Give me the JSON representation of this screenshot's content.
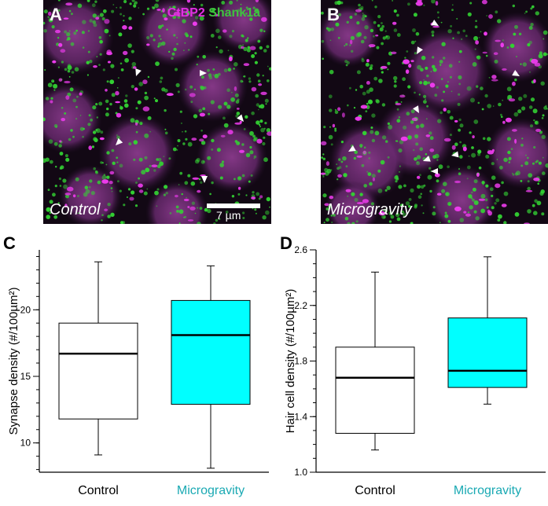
{
  "panels": {
    "A": {
      "letter": "A",
      "condition": "Control",
      "stain1": "CtBP2",
      "stain2": "Shank1a",
      "scale_label": "7 µm"
    },
    "B": {
      "letter": "B",
      "condition": "Microgravity"
    },
    "C": {
      "letter": "C"
    },
    "D": {
      "letter": "D"
    }
  },
  "colors": {
    "ctbp2": "#e22fe2",
    "shank1a": "#3fc33f",
    "control_box": "#ffffff",
    "microgravity_box": "#00ffff",
    "microgravity_label": "#1aa9b3"
  },
  "chart_data": [
    {
      "type": "box",
      "panel": "C",
      "ylabel": "Synapse density (#/100µm²)",
      "categories": [
        "Control",
        "Microgravity"
      ],
      "ylim": [
        7.8,
        24.5
      ],
      "yticks": [
        10,
        15,
        20
      ],
      "ytick_labels": [
        "10",
        "15",
        "20"
      ],
      "minor_tick_step": 1,
      "boxes": [
        {
          "name": "Control",
          "min": 9.1,
          "q1": 11.8,
          "median": 16.7,
          "q3": 19.0,
          "max": 23.6
        },
        {
          "name": "Microgravity",
          "min": 8.1,
          "q1": 12.9,
          "median": 18.1,
          "q3": 20.7,
          "max": 23.3
        }
      ],
      "grid": false
    },
    {
      "type": "box",
      "panel": "D",
      "ylabel": "Hair cell density (#/100µm²)",
      "categories": [
        "Control",
        "Microgravity"
      ],
      "ylim": [
        1.0,
        2.6
      ],
      "yticks": [
        1.0,
        1.4,
        1.8,
        2.2,
        2.6
      ],
      "ytick_labels": [
        "1.0",
        "1.4",
        "1.8",
        "2.2",
        "2.6"
      ],
      "minor_tick_step": 0.1,
      "boxes": [
        {
          "name": "Control",
          "min": 1.16,
          "q1": 1.28,
          "median": 1.68,
          "q3": 1.9,
          "max": 2.44
        },
        {
          "name": "Microgravity",
          "min": 1.49,
          "q1": 1.61,
          "median": 1.73,
          "q3": 2.11,
          "max": 2.55
        }
      ],
      "grid": false
    }
  ]
}
